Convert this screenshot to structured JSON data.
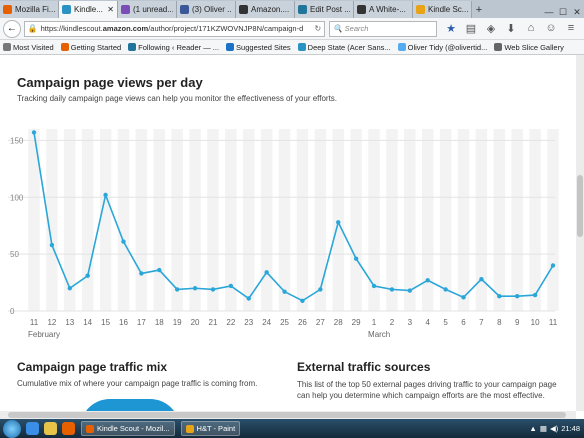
{
  "browser": {
    "tabs": [
      {
        "label": "Mozilla Fi...",
        "color": "#e66000",
        "active": false
      },
      {
        "label": "Kindle...",
        "color": "#2a93c4",
        "active": true
      },
      {
        "label": "(1 unread...",
        "color": "#7b4bb7",
        "active": false
      },
      {
        "label": "(3) Oliver ...",
        "color": "#3b5998",
        "active": false
      },
      {
        "label": "Amazon....",
        "color": "#333333",
        "active": false
      },
      {
        "label": "Edit Post ...",
        "color": "#21759b",
        "active": false
      },
      {
        "label": "A White-...",
        "color": "#333333",
        "active": false
      },
      {
        "label": "Kindle Sc...",
        "color": "#e8a317",
        "active": false
      }
    ],
    "new_tab_label": "+",
    "url_prefix": "https://kindlescout.",
    "url_domain": "amazon.com",
    "url_path": "/author/project/171KZWOVNJP8N/campaign-d",
    "search_placeholder": "Search",
    "bookmarks": [
      {
        "label": "Most Visited",
        "color": "#777777"
      },
      {
        "label": "Getting Started",
        "color": "#e66000"
      },
      {
        "label": "Following ‹ Reader — ...",
        "color": "#21759b"
      },
      {
        "label": "Suggested Sites",
        "color": "#1a73c6"
      },
      {
        "label": "Deep State (Acer Sans...",
        "color": "#2a93c4"
      },
      {
        "label": "Oliver Tidy (@olivertid...",
        "color": "#55acee"
      },
      {
        "label": "Web Slice Gallery",
        "color": "#666666"
      }
    ]
  },
  "page": {
    "title": "Campaign page views per day",
    "subtitle": "Tracking daily campaign page views can help you monitor the effectiveness of your efforts.",
    "section2_title": "Campaign page traffic mix",
    "section2_text": "Cumulative mix of where your campaign page traffic is coming from.",
    "section3_title": "External traffic sources",
    "section3_text": "This list of the top 50 external pages driving traffic to your campaign page can help you determine which campaign efforts are the most effective."
  },
  "chart_data": {
    "type": "line",
    "x": [
      "11",
      "12",
      "13",
      "14",
      "15",
      "16",
      "17",
      "18",
      "19",
      "20",
      "21",
      "22",
      "23",
      "24",
      "25",
      "26",
      "27",
      "28",
      "29",
      "1",
      "2",
      "3",
      "4",
      "5",
      "6",
      "7",
      "8",
      "9",
      "10",
      "11"
    ],
    "month_labels": [
      {
        "label": "February",
        "index": 0
      },
      {
        "label": "March",
        "index": 19
      }
    ],
    "series": [
      {
        "values": [
          157,
          58,
          20,
          31,
          102,
          61,
          33,
          36,
          19,
          20,
          19,
          22,
          11,
          34,
          17,
          9,
          19,
          78,
          46,
          22,
          19,
          18,
          27,
          19,
          12,
          28,
          13,
          13,
          14,
          40
        ]
      }
    ],
    "ylim": [
      0,
      160
    ],
    "yticks": [
      0,
      50,
      100,
      150
    ],
    "grid": true,
    "line_color": "#2aa6d8"
  },
  "taskbar": {
    "tasks": [
      {
        "label": "Kindle Scout - Mozil...",
        "color": "#e66000"
      },
      {
        "label": "H&T - Paint",
        "color": "#e8a317"
      }
    ],
    "time": "21:48"
  }
}
